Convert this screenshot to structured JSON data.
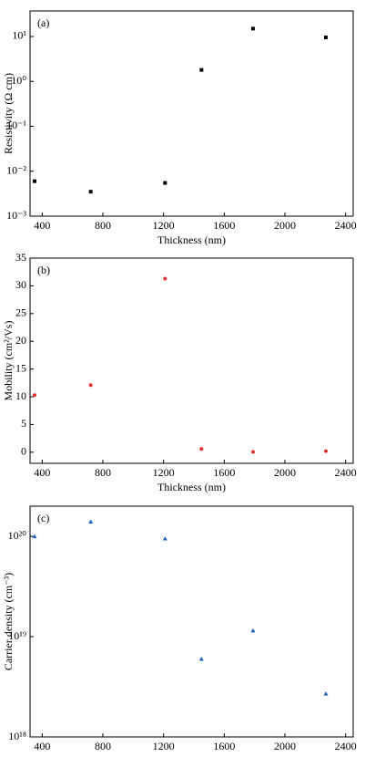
{
  "chart_data": [
    {
      "type": "scatter",
      "label": "(a)",
      "xlabel": "Thickness (nm)",
      "ylabel": "Resistivity (Ω cm)",
      "x": [
        350,
        720,
        1210,
        1450,
        1790,
        2270
      ],
      "values": [
        0.006,
        0.0035,
        0.0055,
        1.8,
        15,
        9.5
      ],
      "xlim": [
        320,
        2450
      ],
      "xticks": [
        400,
        800,
        1200,
        1600,
        2000,
        2400
      ],
      "ylim": [
        0.001,
        37
      ],
      "log_y": true,
      "yticks": [
        {
          "value": 0.001,
          "label": "10⁻³"
        },
        {
          "value": 0.01,
          "label": "10⁻²"
        },
        {
          "value": 0.1,
          "label": "10⁻¹"
        },
        {
          "value": 1,
          "label": "10⁰"
        },
        {
          "value": 10,
          "label": "10¹"
        }
      ],
      "color": "#000000",
      "marker": "square"
    },
    {
      "type": "scatter",
      "label": "(b)",
      "xlabel": "Thickness (nm)",
      "ylabel": "Mobility (cm²/Vs)",
      "x": [
        350,
        720,
        1210,
        1450,
        1790,
        2270
      ],
      "values": [
        10.3,
        12.1,
        31.3,
        0.6,
        0.05,
        0.2
      ],
      "xlim": [
        320,
        2450
      ],
      "xticks": [
        400,
        800,
        1200,
        1600,
        2000,
        2400
      ],
      "ylim": [
        -2,
        35
      ],
      "log_y": false,
      "yticks": [
        0,
        5,
        10,
        15,
        20,
        25,
        30,
        35
      ],
      "color": "#e03030",
      "marker": "circle"
    },
    {
      "type": "scatter",
      "label": "(c)",
      "xlabel": "Thickness (nm)",
      "ylabel": "Carrier density (cm⁻³)",
      "x": [
        350,
        720,
        1210,
        1450,
        1790,
        2270
      ],
      "values": [
        1e+20,
        1.4e+20,
        9.5e+19,
        6e+18,
        1.15e+19,
        2.7e+18
      ],
      "xlim": [
        320,
        2450
      ],
      "xticks": [
        400,
        800,
        1200,
        1600,
        2000,
        2400
      ],
      "ylim": [
        1e+18,
        2e+20
      ],
      "log_y": true,
      "yticks": [
        {
          "value": 1e+18,
          "label": "10¹⁸"
        },
        {
          "value": 1e+19,
          "label": "10¹⁹"
        },
        {
          "value": 1e+20,
          "label": "10²⁰"
        }
      ],
      "color": "#2060c0",
      "marker": "triangle"
    }
  ]
}
